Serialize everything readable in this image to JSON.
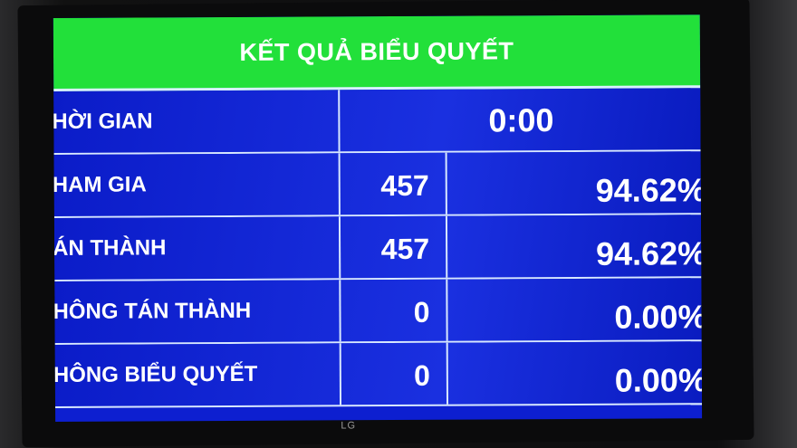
{
  "title": "KẾT QUẢ BIỂU QUYẾT",
  "brand": "LG",
  "time_row": {
    "label": "HỜI GIAN",
    "value": "0:00"
  },
  "rows": [
    {
      "label": "HAM GIA",
      "count": "457",
      "percent": "94.62%"
    },
    {
      "label": "ÁN THÀNH",
      "count": "457",
      "percent": "94.62%"
    },
    {
      "label": "HÔNG TÁN THÀNH",
      "count": "0",
      "percent": "0.00%"
    },
    {
      "label": "HÔNG BIỂU QUYẾT",
      "count": "0",
      "percent": "0.00%"
    }
  ],
  "colors": {
    "header": "#22e03a",
    "body": "#0d1fd0",
    "text": "#ffffff"
  }
}
